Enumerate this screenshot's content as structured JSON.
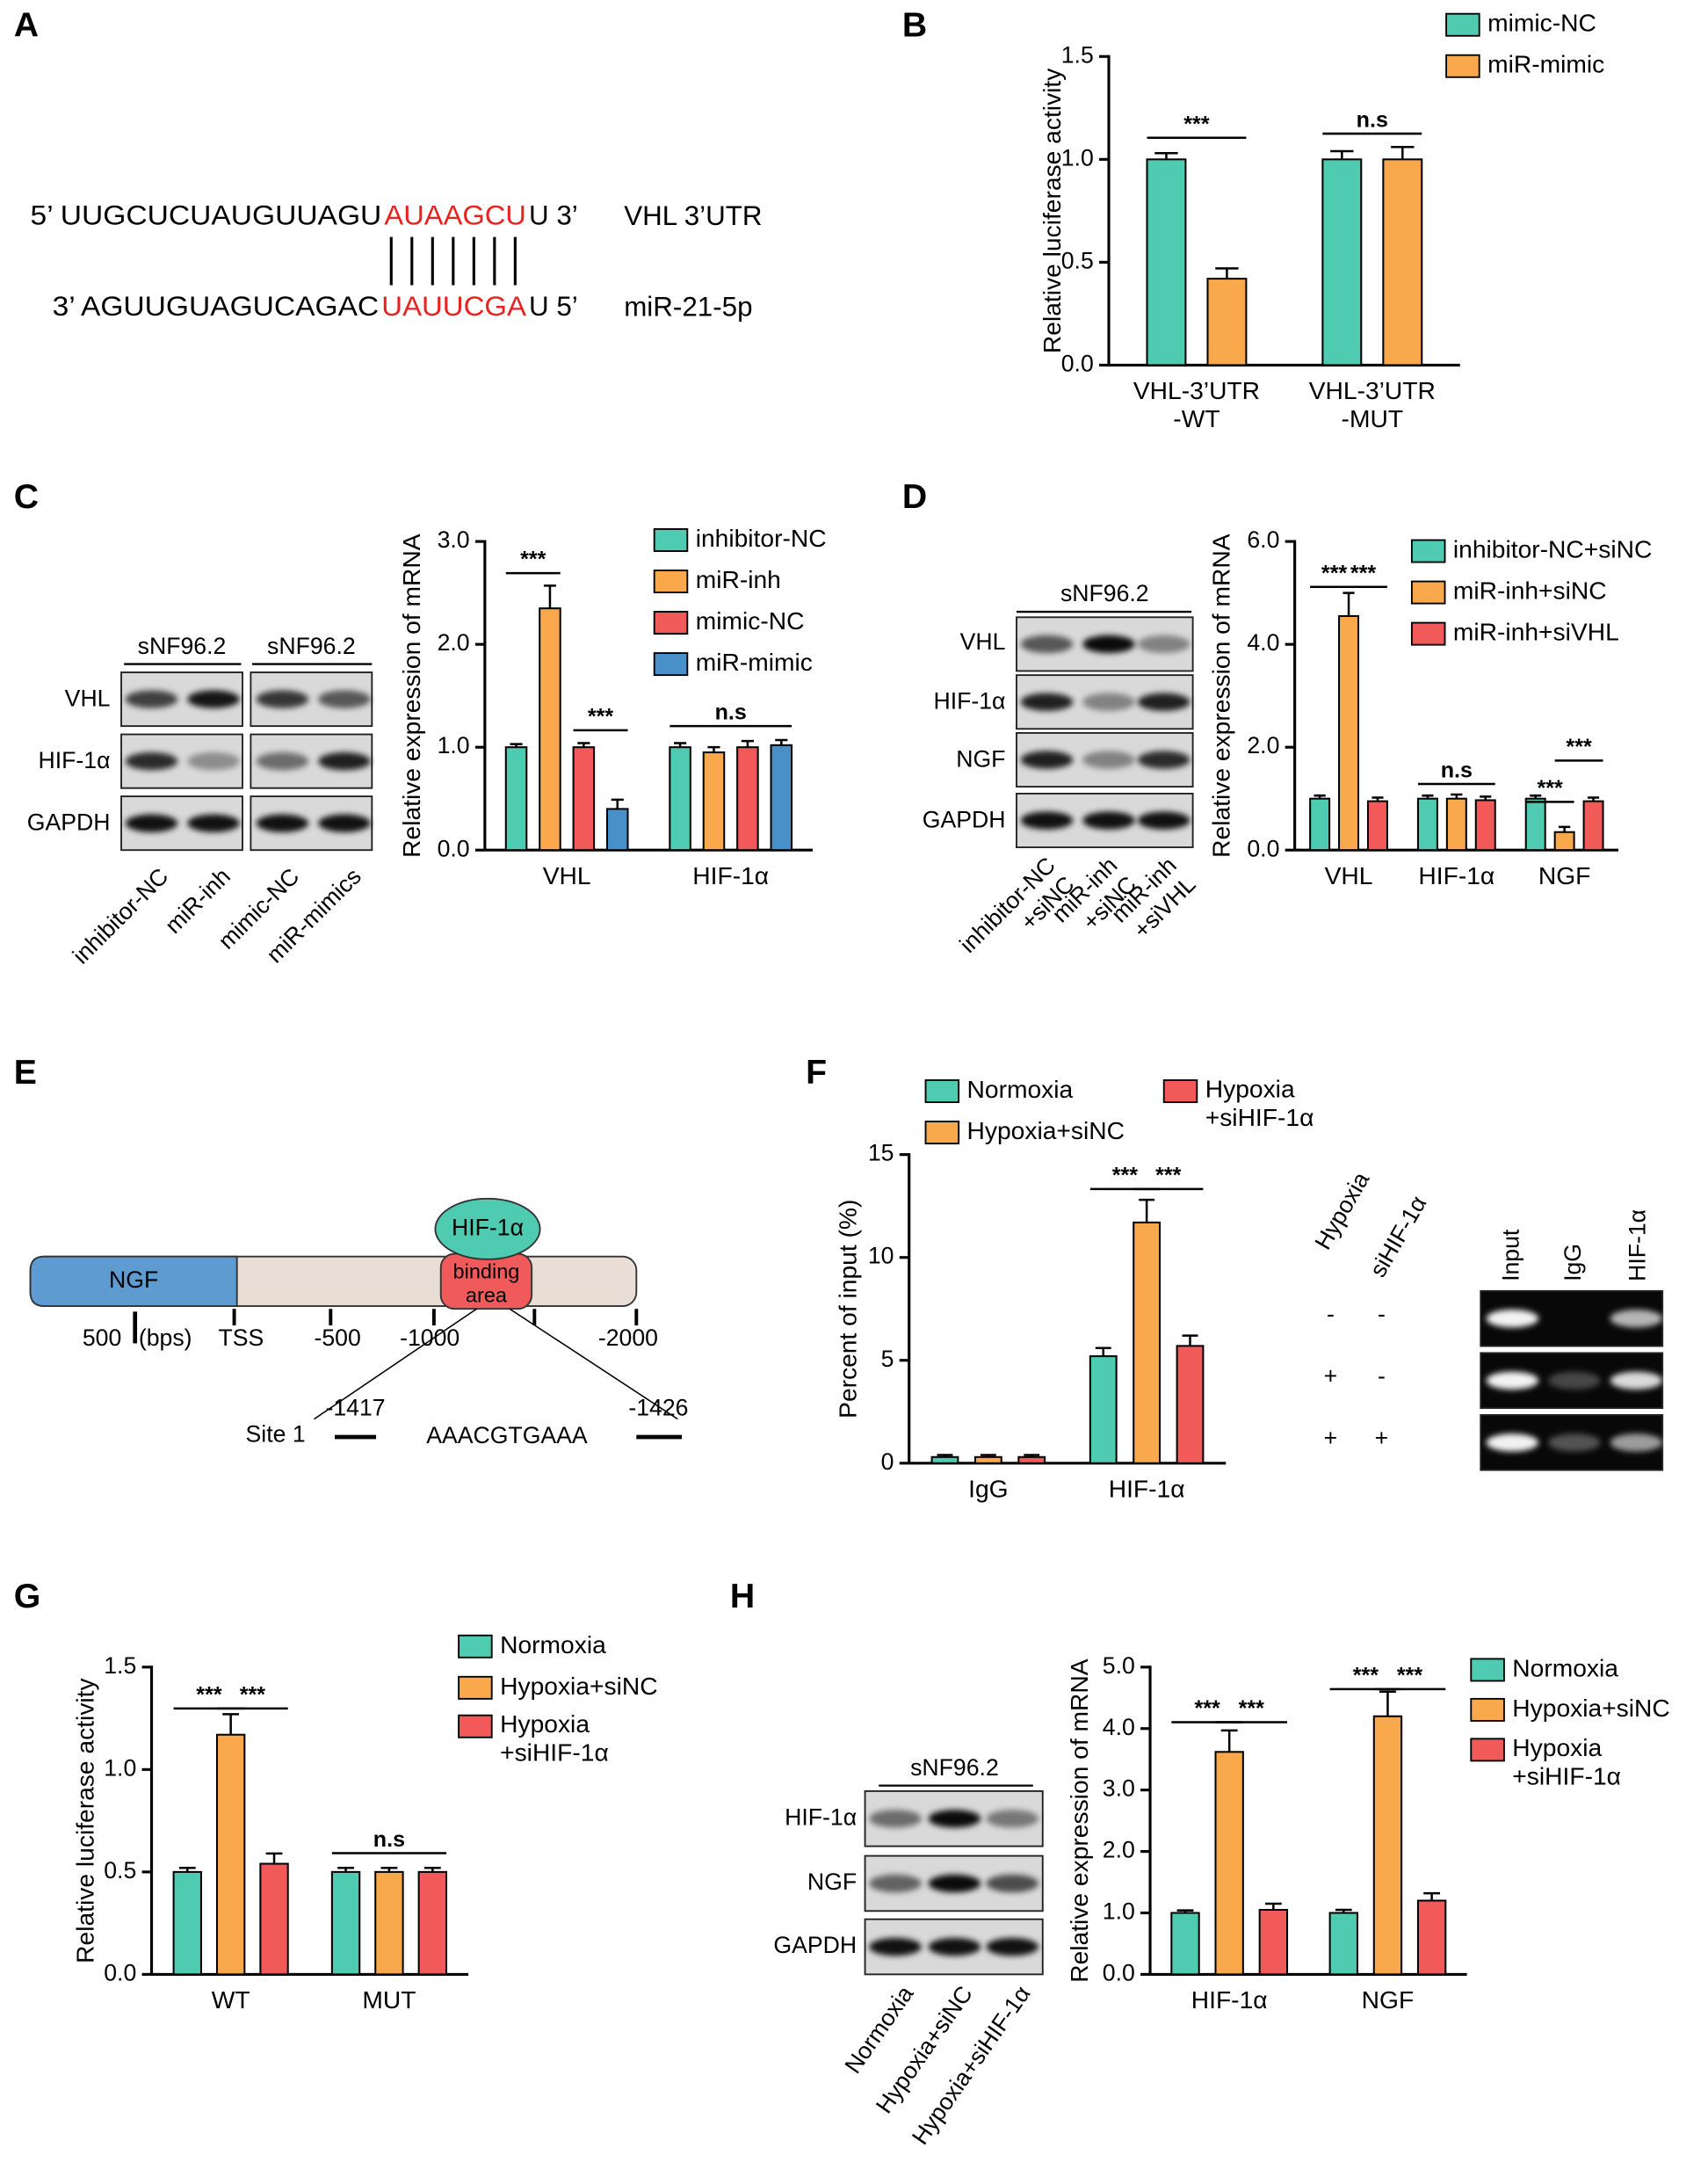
{
  "panel_labels": [
    "A",
    "B",
    "C",
    "D",
    "E",
    "F",
    "G",
    "H"
  ],
  "sequence": [
    {
      "prefix": "5’ UUGCUCUAUGUUAGU",
      "seed": "AUAAGCU",
      "suffix": "U 3’",
      "name": "VHL 3’UTR"
    },
    {
      "prefix": "3’ AGUUGUAGUCAGAC",
      "seed": "UAUUCGA",
      "suffix": "U 5’",
      "name": "miR-21-5p"
    }
  ],
  "blot_c": {
    "cell_lines": [
      "sNF96.2",
      "sNF96.2"
    ],
    "rows": [
      "VHL",
      "HIF-1α",
      "GAPDH"
    ],
    "lanes": [
      "inhibitor-NC",
      "miR-inh",
      "mimic-NC",
      "miR-mimics"
    ]
  },
  "blot_d": {
    "cell_line": "sNF96.2",
    "rows": [
      "VHL",
      "HIF-1α",
      "NGF",
      "GAPDH"
    ],
    "lanes": [
      "inhibitor-NC\n+siNC",
      "miR-inh\n+siNC",
      "miR-inh\n+siVHL"
    ]
  },
  "promoter": {
    "gene": "NGF",
    "factor": "HIF-1α",
    "area": "binding\narea",
    "scale": "500",
    "unit": "(bps)",
    "positions": [
      "TSS",
      "-500",
      "-1000",
      "-2000"
    ],
    "site": "Site 1",
    "start": "-1417",
    "motif": "AAACGTGAAA",
    "end": "-1426"
  },
  "blot_f": {
    "headers": [
      "Hypoxia",
      "siHIF-1α"
    ],
    "lanes": [
      "Input",
      "IgG",
      "HIF-1α"
    ],
    "conditions": [
      [
        "-",
        "-"
      ],
      [
        "+",
        "-"
      ],
      [
        "+",
        "+"
      ]
    ]
  },
  "blot_h": {
    "cell_line": "sNF96.2",
    "rows": [
      "HIF-1α",
      "NGF",
      "GAPDH"
    ],
    "lanes": [
      "Normoxia",
      "Hypoxia+siNC",
      "Hypoxia+siHIF-1α"
    ]
  },
  "chart_data": [
    {
      "type": "bar",
      "ylabel": "Relative luciferase activity",
      "categories": [
        "VHL-3’UTR\n-WT",
        "VHL-3’UTR\n-MUT"
      ],
      "series": [
        {
          "name": "mimic-NC",
          "color": "#4ecbb0",
          "values": [
            1.0,
            1.0
          ],
          "errors": [
            0.03,
            0.04
          ]
        },
        {
          "name": "miR-mimic",
          "color": "#f9a94b",
          "values": [
            0.42,
            1.0
          ],
          "errors": [
            0.05,
            0.06
          ]
        }
      ],
      "ylim": [
        0,
        1.5
      ],
      "yticks": [
        {
          "value": 0,
          "label": "0.0"
        },
        {
          "value": 0.5,
          "label": "0.5"
        },
        {
          "value": 1,
          "label": "1.0"
        },
        {
          "value": 1.5,
          "label": "1.5"
        }
      ],
      "annotations": [
        "***",
        "n.s"
      ]
    },
    {
      "type": "bar",
      "ylabel": "Relative expression of mRNA",
      "categories": [
        "VHL",
        "HIF-1α"
      ],
      "series": [
        {
          "name": "inhibitor-NC",
          "color": "#4ecbb0",
          "values": [
            1.0,
            1.0
          ],
          "errors": [
            0.03,
            0.04
          ]
        },
        {
          "name": "miR-inh",
          "color": "#f9a94b",
          "values": [
            2.35,
            0.95
          ],
          "errors": [
            0.22,
            0.05
          ]
        },
        {
          "name": "mimic-NC",
          "color": "#f25a5a",
          "values": [
            1.0,
            1.0
          ],
          "errors": [
            0.04,
            0.06
          ]
        },
        {
          "name": "miR-mimic",
          "color": "#4a90c8",
          "values": [
            0.4,
            1.02
          ],
          "errors": [
            0.09,
            0.05
          ]
        }
      ],
      "ylim": [
        0,
        3
      ],
      "yticks": [
        {
          "value": 0,
          "label": "0.0"
        },
        {
          "value": 1,
          "label": "1.0"
        },
        {
          "value": 2,
          "label": "2.0"
        },
        {
          "value": 3,
          "label": "3.0"
        }
      ],
      "annotations": [
        "***",
        "***",
        "n.s"
      ]
    },
    {
      "type": "bar",
      "ylabel": "Relative expression of mRNA",
      "categories": [
        "VHL",
        "HIF-1α",
        "NGF"
      ],
      "series": [
        {
          "name": "inhibitor-NC+siNC",
          "color": "#4ecbb0",
          "values": [
            1.0,
            1.0,
            1.0
          ],
          "errors": [
            0.06,
            0.06,
            0.06
          ]
        },
        {
          "name": "miR-inh+siNC",
          "color": "#f9a94b",
          "values": [
            4.55,
            1.0,
            0.35
          ],
          "errors": [
            0.45,
            0.08,
            0.1
          ]
        },
        {
          "name": "miR-inh+siVHL",
          "color": "#f25a5a",
          "values": [
            0.95,
            0.97,
            0.95
          ],
          "errors": [
            0.07,
            0.07,
            0.07
          ]
        }
      ],
      "ylim": [
        0,
        6
      ],
      "yticks": [
        {
          "value": 0,
          "label": "0.0"
        },
        {
          "value": 2,
          "label": "2.0"
        },
        {
          "value": 4,
          "label": "4.0"
        },
        {
          "value": 6,
          "label": "6.0"
        }
      ],
      "annotations": [
        "***",
        "***",
        "n.s",
        "***",
        "***"
      ]
    },
    {
      "type": "bar",
      "ylabel": "Percent of input (%)",
      "categories": [
        "IgG",
        "HIF-1α"
      ],
      "series": [
        {
          "name": "Normoxia",
          "color": "#4ecbb0",
          "values": [
            0.3,
            5.2
          ],
          "errors": [
            0.1,
            0.4
          ]
        },
        {
          "name": "Hypoxia+siNC",
          "color": "#f9a94b",
          "values": [
            0.3,
            11.7
          ],
          "errors": [
            0.1,
            1.1
          ]
        },
        {
          "name": "Hypoxia\n+siHIF-1α",
          "color": "#f25a5a",
          "values": [
            0.3,
            5.7
          ],
          "errors": [
            0.1,
            0.5
          ]
        }
      ],
      "ylim": [
        0,
        15
      ],
      "yticks": [
        0,
        5,
        10,
        15
      ],
      "annotations": [
        "***",
        "***"
      ]
    },
    {
      "type": "bar",
      "ylabel": "Relative luciferase activity",
      "categories": [
        "WT",
        "MUT"
      ],
      "series": [
        {
          "name": "Normoxia",
          "color": "#4ecbb0",
          "values": [
            0.5,
            0.5
          ],
          "errors": [
            0.02,
            0.02
          ]
        },
        {
          "name": "Hypoxia+siNC",
          "color": "#f9a94b",
          "values": [
            1.17,
            0.5
          ],
          "errors": [
            0.1,
            0.02
          ]
        },
        {
          "name": "Hypoxia\n+siHIF-1α",
          "color": "#f25a5a",
          "values": [
            0.54,
            0.5
          ],
          "errors": [
            0.05,
            0.02
          ]
        }
      ],
      "ylim": [
        0,
        1.5
      ],
      "yticks": [
        {
          "value": 0,
          "label": "0.0"
        },
        {
          "value": 0.5,
          "label": "0.5"
        },
        {
          "value": 1,
          "label": "1.0"
        },
        {
          "value": 1.5,
          "label": "1.5"
        }
      ],
      "annotations": [
        "***",
        "***",
        "n.s"
      ]
    },
    {
      "type": "bar",
      "ylabel": "Relative expression of mRNA",
      "categories": [
        "HIF-1α",
        "NGF"
      ],
      "series": [
        {
          "name": "Normoxia",
          "color": "#4ecbb0",
          "values": [
            1.0,
            1.0
          ],
          "errors": [
            0.04,
            0.05
          ]
        },
        {
          "name": "Hypoxia+siNC",
          "color": "#f9a94b",
          "values": [
            3.62,
            4.2
          ],
          "errors": [
            0.35,
            0.4
          ]
        },
        {
          "name": "Hypoxia\n+siHIF-1α",
          "color": "#f25a5a",
          "values": [
            1.05,
            1.2
          ],
          "errors": [
            0.1,
            0.12
          ]
        }
      ],
      "ylim": [
        0,
        5
      ],
      "yticks": [
        {
          "value": 0,
          "label": "0.0"
        },
        {
          "value": 1,
          "label": "1.0"
        },
        {
          "value": 2,
          "label": "2.0"
        },
        {
          "value": 3,
          "label": "3.0"
        },
        {
          "value": 4,
          "label": "4.0"
        },
        {
          "value": 5,
          "label": "5.0"
        }
      ],
      "annotations": [
        "***",
        "***",
        "***",
        "***"
      ]
    }
  ]
}
